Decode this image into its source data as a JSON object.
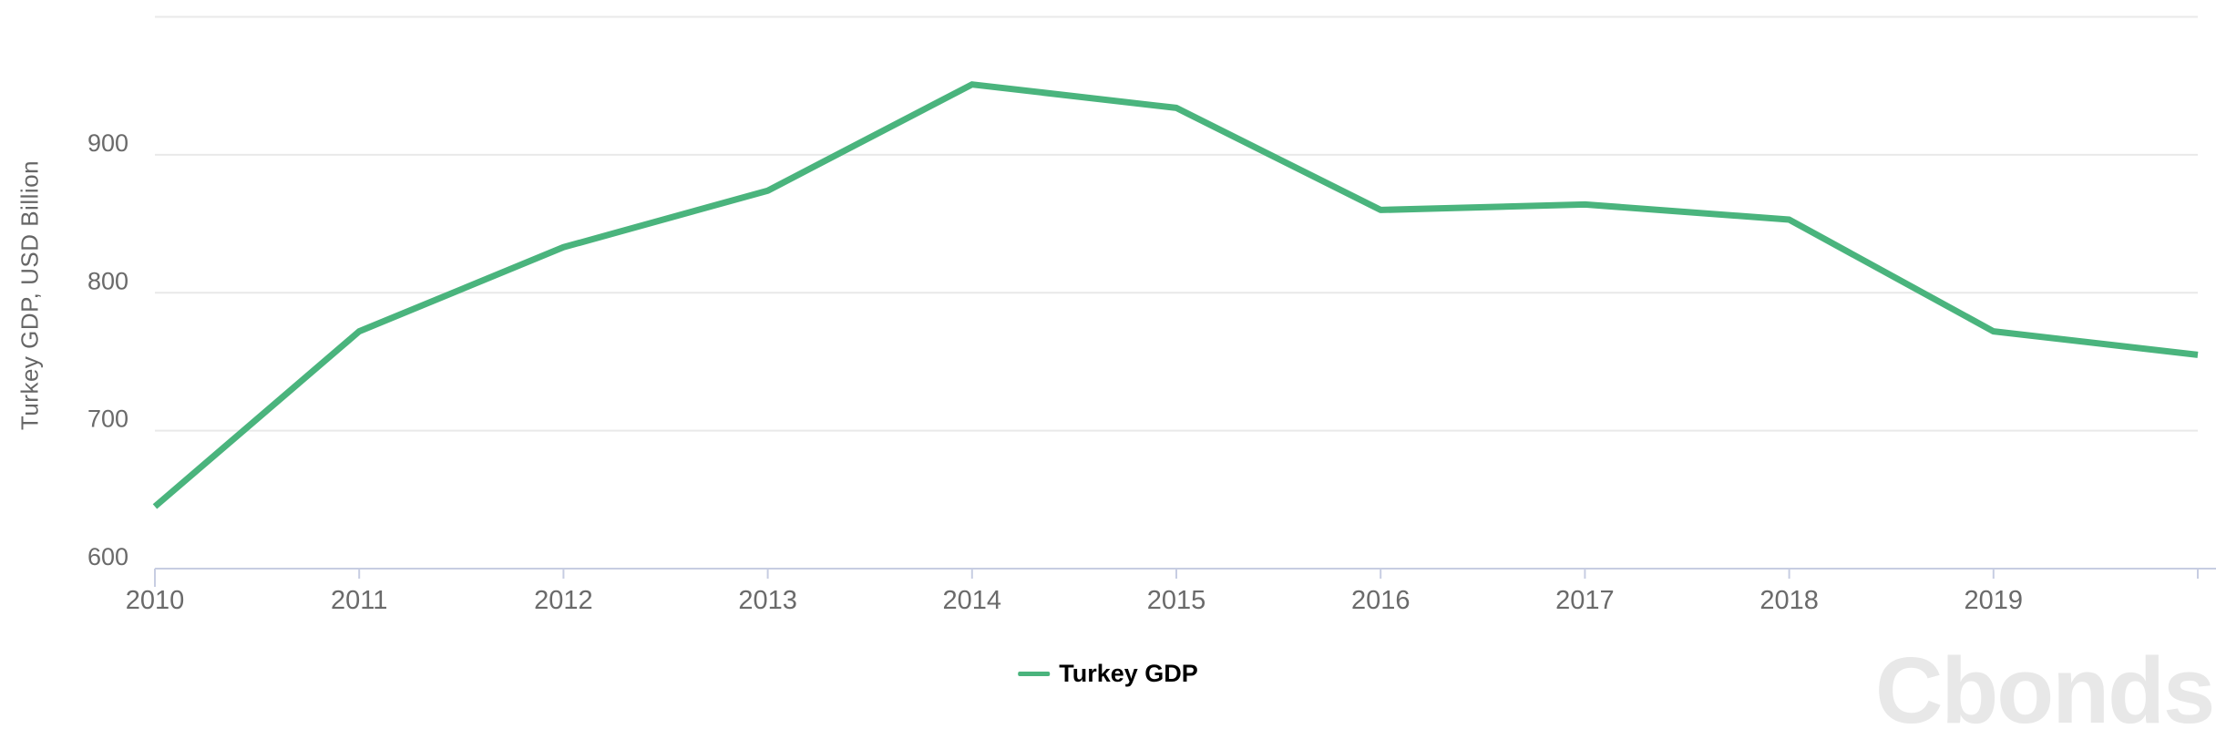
{
  "chart_data": {
    "type": "line",
    "title": "",
    "xlabel": "",
    "ylabel": "Turkey GDP, USD Billion",
    "xlim": [
      2010,
      2020
    ],
    "ylim": [
      600,
      1000
    ],
    "grid": true,
    "legend_position": "bottom-center",
    "x_axis_labels": [
      "2010",
      "2011",
      "2012",
      "2013",
      "2014",
      "2015",
      "2016",
      "2017",
      "2018",
      "2019"
    ],
    "y_axis_ticks": [
      600,
      700,
      800,
      900
    ],
    "y_gridlines": [
      700,
      800,
      900,
      1000
    ],
    "series": [
      {
        "name": "Turkey GDP",
        "color": "#4ab47d",
        "x": [
          2010,
          2011,
          2012,
          2013,
          2014,
          2015,
          2016,
          2017,
          2018,
          2019,
          2020
        ],
        "values": [
          645,
          772,
          833,
          874,
          951,
          934,
          860,
          864,
          853,
          772,
          755
        ]
      }
    ],
    "colors": {
      "line": "#4ab47d",
      "gridline": "#e9e9e9",
      "axis": "#c7cde2",
      "tick_label": "#6a6a6a",
      "axis_title": "#666666",
      "legend_text": "#000000",
      "watermark": "#e8e8e8",
      "background": "#ffffff"
    }
  },
  "legend": {
    "items": [
      {
        "label": "Turkey GDP",
        "color": "#4ab47d"
      }
    ]
  },
  "watermark": {
    "text": "Cbonds"
  }
}
